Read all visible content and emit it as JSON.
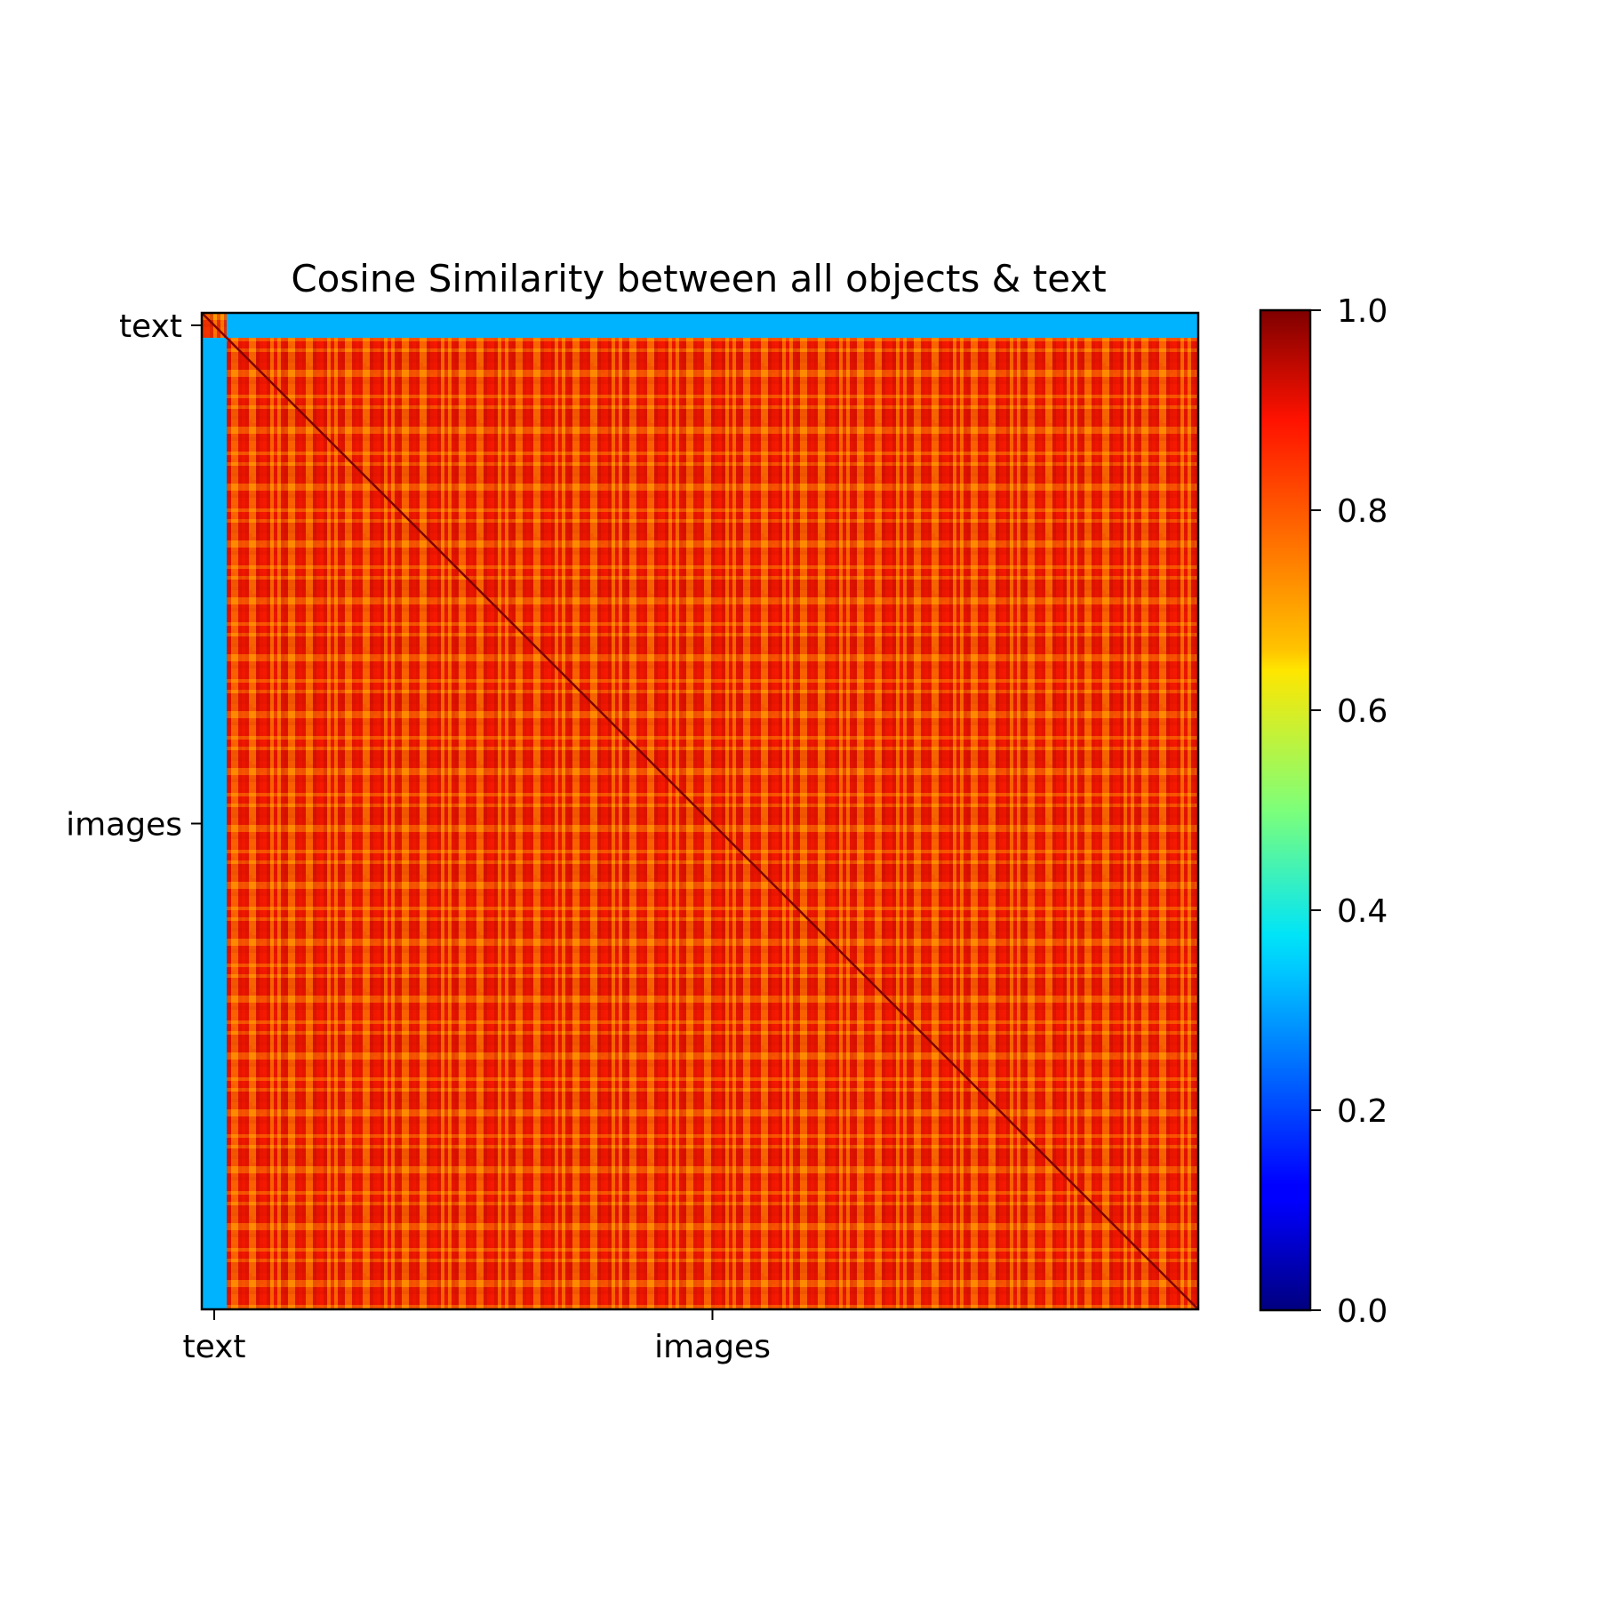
{
  "chart_data": {
    "type": "heatmap",
    "title": "Cosine Similarity between all objects & text",
    "xlabel": "",
    "ylabel": "",
    "x_tick_labels": [
      "text",
      "images"
    ],
    "y_tick_labels": [
      "text",
      "images"
    ],
    "blocks": [
      {
        "name": "text",
        "fraction": 0.025
      },
      {
        "name": "images",
        "fraction": 0.975
      }
    ],
    "block_values": {
      "text_text": 0.82,
      "text_images": 0.3,
      "images_text": 0.3,
      "images_images": 0.85
    },
    "diagonal_value": 1.0,
    "colormap": "jet",
    "colorbar": {
      "min": 0.0,
      "max": 1.0,
      "ticks": [
        "0.0",
        "0.2",
        "0.4",
        "0.6",
        "0.8",
        "1.0"
      ],
      "tick_values": [
        0.0,
        0.2,
        0.4,
        0.6,
        0.8,
        1.0
      ]
    },
    "grid": false,
    "legend": "colorbar-right"
  }
}
